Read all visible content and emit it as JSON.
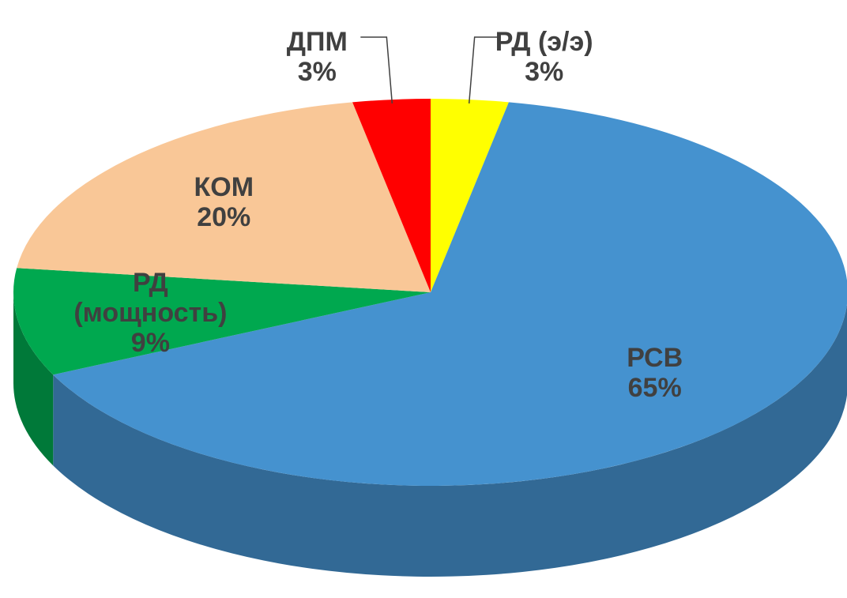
{
  "chart_data": {
    "type": "pie",
    "style": "3d",
    "categories": [
      "РД (э/э)",
      "РСВ",
      "РД (мощность)",
      "КОМ",
      "ДПМ"
    ],
    "values": [
      3,
      65,
      9,
      20,
      3
    ],
    "value_labels": [
      "3%",
      "65%",
      "9%",
      "20%",
      "3%"
    ],
    "colors": [
      "#ffff00",
      "#4592cf",
      "#00a84f",
      "#f9c797",
      "#ff0000"
    ]
  }
}
